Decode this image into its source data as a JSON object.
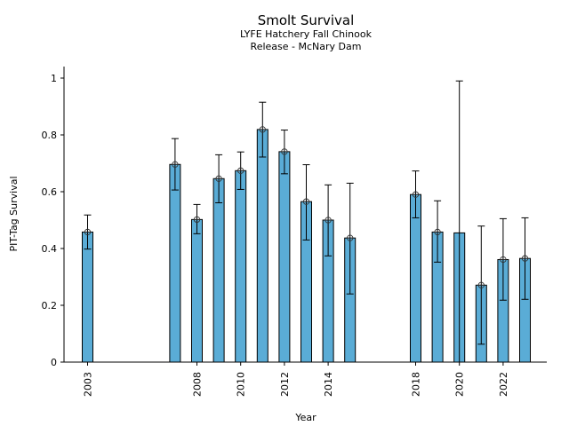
{
  "chart_data": {
    "type": "bar",
    "title": "Smolt Survival",
    "subtitle_lines": [
      "LYFE Hatchery Fall Chinook",
      "Release - McNary Dam"
    ],
    "xlabel": "Year",
    "ylabel": "PIT-Tag Survival",
    "ylim": [
      0,
      1.04
    ],
    "xlim": [
      2002,
      2024.1
    ],
    "yticks": [
      0,
      0.2,
      0.4,
      0.6,
      0.8,
      1
    ],
    "ytick_labels": [
      "0",
      "0.2",
      "0.4",
      "0.6",
      "0.8",
      "1"
    ],
    "xticks": [
      2003,
      2008,
      2010,
      2012,
      2014,
      2018,
      2020,
      2022
    ],
    "xtick_labels": [
      "2003",
      "2008",
      "2010",
      "2012",
      "2014",
      "2018",
      "2020",
      "2022"
    ],
    "bar_color": "#5aacd6",
    "grid": false,
    "legend": "none",
    "points": [
      {
        "year": 2003,
        "value": 0.458,
        "err_low": 0.398,
        "err_high": 0.518,
        "marker": true
      },
      {
        "year": 2007,
        "value": 0.696,
        "err_low": 0.606,
        "err_high": 0.787,
        "marker": true
      },
      {
        "year": 2008,
        "value": 0.502,
        "err_low": 0.452,
        "err_high": 0.555,
        "marker": true
      },
      {
        "year": 2009,
        "value": 0.646,
        "err_low": 0.561,
        "err_high": 0.73,
        "marker": true
      },
      {
        "year": 2010,
        "value": 0.674,
        "err_low": 0.608,
        "err_high": 0.74,
        "marker": true
      },
      {
        "year": 2011,
        "value": 0.819,
        "err_low": 0.722,
        "err_high": 0.915,
        "marker": true
      },
      {
        "year": 2012,
        "value": 0.741,
        "err_low": 0.663,
        "err_high": 0.817,
        "marker": true
      },
      {
        "year": 2013,
        "value": 0.565,
        "err_low": 0.43,
        "err_high": 0.695,
        "marker": true
      },
      {
        "year": 2014,
        "value": 0.5,
        "err_low": 0.374,
        "err_high": 0.624,
        "marker": true
      },
      {
        "year": 2015,
        "value": 0.437,
        "err_low": 0.24,
        "err_high": 0.63,
        "marker": true
      },
      {
        "year": 2018,
        "value": 0.59,
        "err_low": 0.508,
        "err_high": 0.673,
        "marker": true
      },
      {
        "year": 2019,
        "value": 0.458,
        "err_low": 0.352,
        "err_high": 0.568,
        "marker": true
      },
      {
        "year": 2020,
        "value": 0.455,
        "err_low": 0.0,
        "err_high": 0.99,
        "marker": false
      },
      {
        "year": 2021,
        "value": 0.271,
        "err_low": 0.063,
        "err_high": 0.479,
        "marker": true
      },
      {
        "year": 2022,
        "value": 0.361,
        "err_low": 0.218,
        "err_high": 0.505,
        "marker": true
      },
      {
        "year": 2023,
        "value": 0.365,
        "err_low": 0.221,
        "err_high": 0.508,
        "marker": true
      }
    ]
  }
}
